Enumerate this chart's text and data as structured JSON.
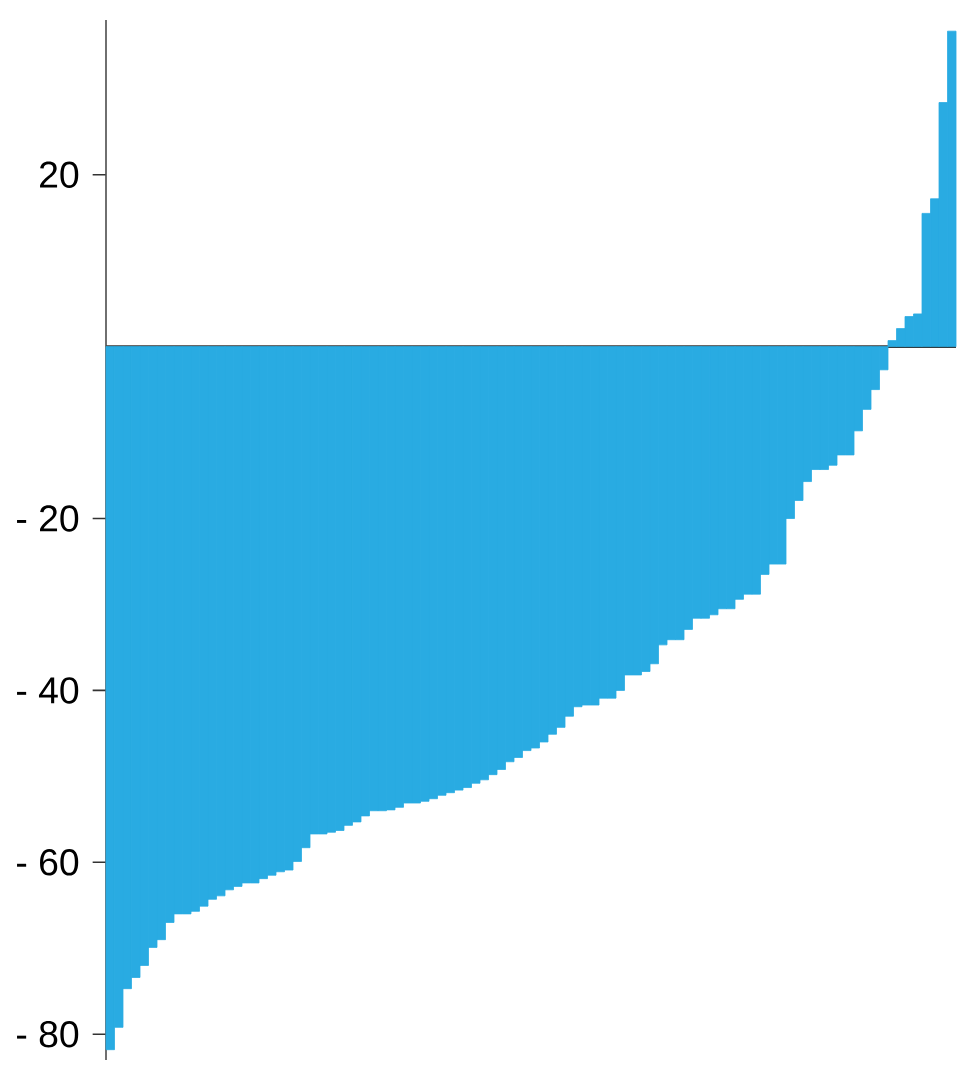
{
  "chart_data": {
    "type": "bar",
    "categories": [
      null,
      null,
      null,
      null,
      null,
      null,
      null,
      null,
      null,
      null,
      null,
      null,
      null,
      null,
      null,
      null,
      null,
      null,
      null,
      null,
      null,
      null,
      null,
      null,
      null,
      null,
      null,
      null,
      null,
      null,
      null,
      null,
      null,
      null,
      null,
      null,
      null,
      null,
      null,
      null,
      null,
      null,
      null,
      null,
      null,
      null,
      null,
      null,
      null,
      null,
      null,
      null,
      null,
      null,
      null,
      null,
      null,
      null,
      null,
      null,
      null,
      null,
      null,
      null,
      null,
      null,
      null,
      null,
      null,
      null,
      null,
      null,
      null,
      null,
      null,
      null,
      null,
      null,
      null,
      null,
      null,
      null,
      null,
      null,
      null,
      null,
      null,
      null,
      null,
      null,
      null,
      null,
      null,
      null,
      null,
      null,
      null,
      null,
      null,
      null
    ],
    "values": [
      -81.8,
      -79.2,
      -74.7,
      -73.4,
      -72.0,
      -69.9,
      -69.0,
      -67.0,
      -66.0,
      -66.0,
      -65.7,
      -65.1,
      -64.3,
      -63.9,
      -63.2,
      -62.8,
      -62.4,
      -62.4,
      -61.9,
      -61.5,
      -61.1,
      -60.9,
      -59.9,
      -58.3,
      -56.7,
      -56.7,
      -56.5,
      -56.3,
      -55.7,
      -55.3,
      -54.6,
      -54.0,
      -54.0,
      -53.9,
      -53.6,
      -53.1,
      -53.1,
      -52.9,
      -52.6,
      -52.2,
      -51.9,
      -51.6,
      -51.3,
      -50.8,
      -50.4,
      -49.8,
      -49.2,
      -48.3,
      -47.8,
      -47.0,
      -46.7,
      -46.0,
      -45.1,
      -44.3,
      -43.0,
      -41.9,
      -41.7,
      -41.7,
      -40.9,
      -40.9,
      -40.0,
      -38.2,
      -38.2,
      -37.8,
      -36.9,
      -34.7,
      -34.1,
      -34.1,
      -32.9,
      -31.6,
      -31.6,
      -31.2,
      -30.5,
      -30.5,
      -29.4,
      -28.8,
      -28.8,
      -26.5,
      -25.3,
      -25.3,
      -20.0,
      -17.9,
      -15.7,
      -14.3,
      -14.3,
      -13.8,
      -12.6,
      -12.6,
      -9.8,
      -7.3,
      -5.0,
      -2.7,
      0.7,
      2.1,
      3.5,
      3.8,
      15.5,
      17.2,
      28.4,
      36.7
    ],
    "color": "#29abe2",
    "ylim": [
      -83,
      38
    ],
    "yticks": [
      {
        "value": -80,
        "label": "- 80"
      },
      {
        "value": -60,
        "label": "- 60"
      },
      {
        "value": -40,
        "label": "- 40"
      },
      {
        "value": -20,
        "label": "- 20"
      },
      20
    ],
    "tick_labels": "y"
  }
}
